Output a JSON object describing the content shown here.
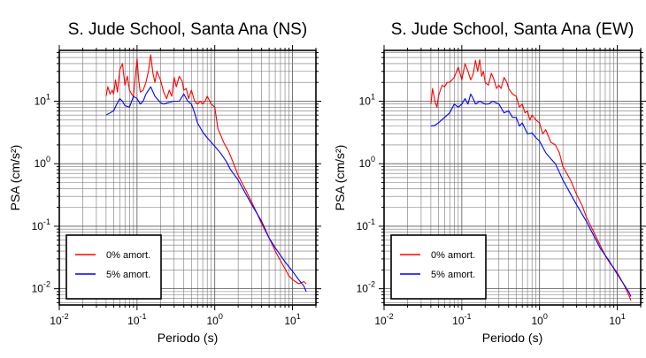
{
  "figure": {
    "background": "#ffffff"
  },
  "chart_data": [
    {
      "type": "line",
      "title": "S. Jude School, Santa Ana (NS)",
      "xlabel": "Periodo (s)",
      "ylabel": "PSA (cm/s²)",
      "x_scale": "log",
      "y_scale": "log",
      "xlim": [
        0.01,
        20
      ],
      "ylim": [
        0.0055,
        65
      ],
      "x_ticks": [
        0.01,
        0.1,
        1,
        10
      ],
      "x_tick_labels": [
        [
          "10",
          "-2"
        ],
        [
          "10",
          "-1"
        ],
        [
          "10",
          "0"
        ],
        [
          "10",
          "1"
        ]
      ],
      "y_ticks": [
        0.01,
        0.1,
        1,
        10
      ],
      "y_tick_labels": [
        [
          "10",
          "-2"
        ],
        [
          "10",
          "-1"
        ],
        [
          "10",
          "0"
        ],
        [
          "10",
          "1"
        ]
      ],
      "grid": true,
      "legend_position": "bottom-left",
      "series": [
        {
          "name": "0% amort.",
          "color": "#ff0000",
          "x": [
            0.04,
            0.042,
            0.045,
            0.048,
            0.05,
            0.053,
            0.056,
            0.06,
            0.065,
            0.07,
            0.075,
            0.08,
            0.085,
            0.09,
            0.095,
            0.1,
            0.105,
            0.11,
            0.12,
            0.13,
            0.14,
            0.15,
            0.16,
            0.17,
            0.18,
            0.2,
            0.22,
            0.24,
            0.26,
            0.28,
            0.3,
            0.32,
            0.35,
            0.38,
            0.4,
            0.43,
            0.46,
            0.5,
            0.55,
            0.6,
            0.65,
            0.7,
            0.75,
            0.8,
            0.9,
            1.0,
            1.1,
            1.2,
            1.3,
            1.5,
            1.7,
            2.0,
            2.5,
            3.0,
            3.5,
            4.0,
            5.0,
            6.0,
            7.0,
            8.0,
            9.0,
            10.0,
            12.0,
            14.0,
            15.0
          ],
          "y": [
            12,
            17,
            13,
            15,
            13,
            22,
            14,
            32,
            40,
            18,
            25,
            15,
            13,
            12,
            25,
            48,
            22,
            14,
            15,
            20,
            30,
            55,
            28,
            20,
            30,
            22,
            14,
            11,
            15,
            12,
            24,
            17,
            25,
            21,
            15,
            16,
            11,
            15,
            10,
            9,
            10,
            9,
            10,
            12,
            9,
            8,
            3.6,
            2.8,
            2.2,
            1.6,
            1.1,
            0.65,
            0.38,
            0.24,
            0.16,
            0.11,
            0.065,
            0.04,
            0.028,
            0.021,
            0.016,
            0.014,
            0.012,
            0.013,
            0.012
          ]
        },
        {
          "name": "5% amort.",
          "color": "#0000ff",
          "x": [
            0.04,
            0.045,
            0.05,
            0.055,
            0.06,
            0.065,
            0.07,
            0.08,
            0.09,
            0.1,
            0.11,
            0.12,
            0.13,
            0.15,
            0.17,
            0.2,
            0.22,
            0.25,
            0.3,
            0.35,
            0.4,
            0.45,
            0.5,
            0.55,
            0.6,
            0.7,
            0.8,
            0.9,
            1.0,
            1.2,
            1.4,
            1.6,
            2.0,
            2.5,
            3.0,
            4.0,
            5.0,
            6.0,
            8.0,
            10.0,
            12.0,
            14.0,
            15.0
          ],
          "y": [
            6,
            6.5,
            7,
            9,
            11,
            10,
            8.5,
            8,
            12,
            11,
            9,
            10,
            13,
            17,
            12,
            9.5,
            9,
            9.5,
            10,
            10,
            13,
            10,
            9,
            6.5,
            4.5,
            3.2,
            2.6,
            2.2,
            1.9,
            1.45,
            1.1,
            0.8,
            0.55,
            0.33,
            0.22,
            0.12,
            0.065,
            0.045,
            0.027,
            0.019,
            0.014,
            0.011,
            0.009
          ]
        }
      ]
    },
    {
      "type": "line",
      "title": "S. Jude School, Santa Ana (EW)",
      "xlabel": "Periodo (s)",
      "ylabel": "PSA (cm/s²)",
      "x_scale": "log",
      "y_scale": "log",
      "xlim": [
        0.01,
        20
      ],
      "ylim": [
        0.0055,
        65
      ],
      "x_ticks": [
        0.01,
        0.1,
        1,
        10
      ],
      "x_tick_labels": [
        [
          "10",
          "-2"
        ],
        [
          "10",
          "-1"
        ],
        [
          "10",
          "0"
        ],
        [
          "10",
          "1"
        ]
      ],
      "y_ticks": [
        0.01,
        0.1,
        1,
        10
      ],
      "y_tick_labels": [
        [
          "10",
          "-2"
        ],
        [
          "10",
          "-1"
        ],
        [
          "10",
          "0"
        ],
        [
          "10",
          "1"
        ]
      ],
      "grid": true,
      "legend_position": "bottom-left",
      "series": [
        {
          "name": "0% amort.",
          "color": "#ff0000",
          "x": [
            0.04,
            0.042,
            0.045,
            0.048,
            0.05,
            0.053,
            0.056,
            0.06,
            0.065,
            0.07,
            0.075,
            0.08,
            0.09,
            0.1,
            0.11,
            0.12,
            0.13,
            0.14,
            0.15,
            0.16,
            0.17,
            0.18,
            0.19,
            0.2,
            0.22,
            0.24,
            0.26,
            0.28,
            0.3,
            0.32,
            0.35,
            0.38,
            0.4,
            0.45,
            0.5,
            0.55,
            0.6,
            0.65,
            0.7,
            0.75,
            0.8,
            0.9,
            1.0,
            1.1,
            1.2,
            1.4,
            1.6,
            1.8,
            2.0,
            2.5,
            3.0,
            3.5,
            4.0,
            5.0,
            6.0,
            7.0,
            8.0,
            10.0,
            12.0,
            14.0,
            15.0
          ],
          "y": [
            9,
            16,
            10,
            8,
            12,
            15,
            18,
            17,
            20,
            20,
            22,
            24,
            35,
            22,
            40,
            30,
            22,
            27,
            45,
            30,
            46,
            25,
            30,
            20,
            18,
            28,
            22,
            16,
            18,
            16,
            24,
            20,
            16,
            13,
            12,
            8,
            9,
            6.5,
            7,
            5,
            6,
            5,
            4.5,
            3,
            3.5,
            2.2,
            2.0,
            1.5,
            0.9,
            0.55,
            0.32,
            0.22,
            0.14,
            0.08,
            0.05,
            0.034,
            0.026,
            0.018,
            0.012,
            0.008,
            0.0065
          ]
        },
        {
          "name": "5% amort.",
          "color": "#0000ff",
          "x": [
            0.04,
            0.045,
            0.05,
            0.055,
            0.06,
            0.065,
            0.07,
            0.08,
            0.09,
            0.1,
            0.11,
            0.12,
            0.13,
            0.14,
            0.15,
            0.17,
            0.2,
            0.22,
            0.25,
            0.3,
            0.35,
            0.4,
            0.45,
            0.5,
            0.55,
            0.6,
            0.7,
            0.8,
            0.9,
            1.0,
            1.2,
            1.4,
            1.6,
            2.0,
            2.5,
            3.0,
            4.0,
            5.0,
            6.0,
            8.0,
            10.0,
            12.0,
            14.0,
            15.0
          ],
          "y": [
            4,
            4.1,
            4.5,
            5,
            5.5,
            6,
            6.5,
            9,
            8,
            9,
            11,
            9,
            13,
            11,
            9,
            10,
            9,
            9,
            10,
            9,
            6.5,
            7,
            5.5,
            5.5,
            4,
            4.5,
            3,
            3.1,
            2.6,
            2.3,
            1.5,
            1.2,
            1.0,
            0.55,
            0.33,
            0.22,
            0.12,
            0.07,
            0.045,
            0.027,
            0.017,
            0.012,
            0.009,
            0.0075
          ]
        }
      ]
    }
  ]
}
